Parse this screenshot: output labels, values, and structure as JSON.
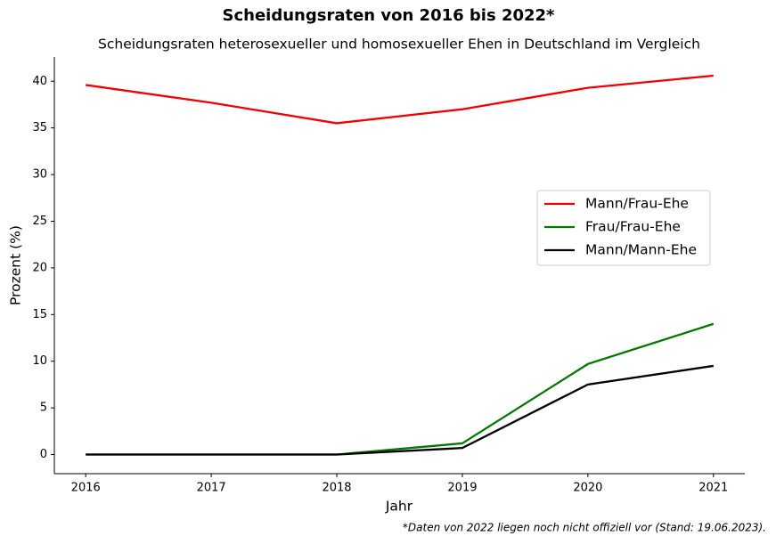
{
  "chart_data": {
    "type": "line",
    "title": "Scheidungsraten von 2016 bis 2022*",
    "subtitle": "Scheidungsraten heterosexueller und homosexueller Ehen in Deutschland im Vergleich",
    "x_label": "Jahr",
    "y_label": "Prozent (%)",
    "footnote": "*Daten von 2022 liegen noch nicht offiziell vor (Stand: 19.06.2023).",
    "x": [
      2016,
      2017,
      2018,
      2019,
      2020,
      2021
    ],
    "series": [
      {
        "name": "Mann/Frau-Ehe",
        "color": "#ee0000",
        "values": [
          39.6,
          37.7,
          35.5,
          37.0,
          39.3,
          40.6
        ]
      },
      {
        "name": "Frau/Frau-Ehe",
        "color": "#007700",
        "values": [
          0,
          0,
          0,
          1.2,
          9.7,
          14.0
        ]
      },
      {
        "name": "Mann/Mann-Ehe",
        "color": "#000000",
        "values": [
          0,
          0,
          0,
          0.7,
          7.5,
          9.5
        ]
      }
    ],
    "xlim": [
      2015.75,
      2021.25
    ],
    "xticks": [
      2016,
      2017,
      2018,
      2019,
      2020,
      2021
    ],
    "ylim": [
      -2.05,
      42.6
    ],
    "yticks": [
      0,
      5,
      10,
      15,
      20,
      25,
      30,
      35,
      40
    ],
    "legend": "center right"
  }
}
